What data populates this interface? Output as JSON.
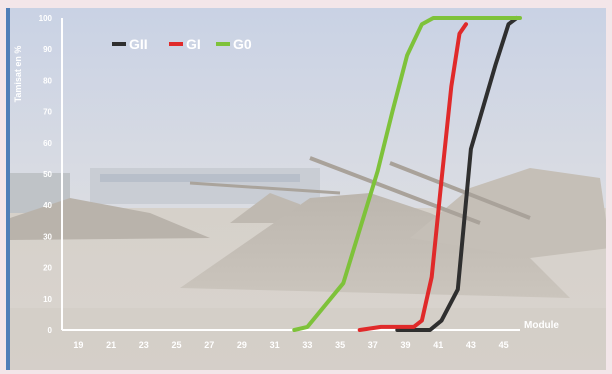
{
  "chart_data": {
    "type": "line",
    "title": "",
    "xlabel": "Module",
    "ylabel": "Tamisat en %",
    "xlim": [
      18,
      46
    ],
    "ylim": [
      0,
      100
    ],
    "x_ticks": [
      "19",
      "21",
      "23",
      "25",
      "27",
      "29",
      "31",
      "33",
      "35",
      "37",
      "39",
      "41",
      "43",
      "45"
    ],
    "y_ticks": [
      "0",
      "10",
      "20",
      "30",
      "40",
      "50",
      "60",
      "70",
      "80",
      "90",
      "100"
    ],
    "legend_position": "top-left",
    "grid": false,
    "series": [
      {
        "name": "GII",
        "color": "#2f2f2f",
        "x": [
          38.5,
          40.5,
          41.2,
          42.2,
          43.0,
          44.5,
          45.3,
          45.8
        ],
        "y": [
          0,
          0,
          3,
          13,
          58,
          85,
          98,
          100
        ]
      },
      {
        "name": "GI",
        "color": "#e02a2a",
        "x": [
          36.2,
          37.5,
          39.5,
          40.0,
          40.6,
          41.2,
          41.8,
          42.3,
          42.7
        ],
        "y": [
          0,
          1,
          1,
          3,
          17,
          48,
          78,
          95,
          98
        ]
      },
      {
        "name": "G0",
        "color": "#7ec23a",
        "x": [
          32.2,
          33.0,
          35.2,
          37.3,
          38.2,
          39.1,
          40.0,
          40.7,
          42.0,
          44.0,
          46.0
        ],
        "y": [
          0,
          1,
          15,
          51,
          70,
          88,
          98,
          100,
          100,
          100,
          100
        ]
      }
    ]
  }
}
